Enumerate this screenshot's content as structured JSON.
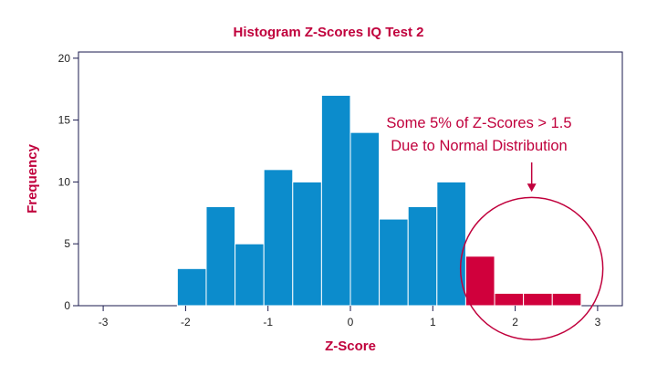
{
  "chart_data": {
    "type": "bar",
    "title": "Histogram Z-Scores IQ Test 2",
    "xlabel": "Z-Score",
    "ylabel": "Frequency",
    "xlim": [
      -3.3,
      3.3
    ],
    "ylim": [
      0,
      20.5
    ],
    "xticks": [
      -3,
      -2,
      -1,
      0,
      1,
      2,
      3
    ],
    "yticks": [
      0,
      5,
      10,
      15,
      20
    ],
    "bin_width": 0.35,
    "bins": [
      {
        "x0": -2.1,
        "x1": -1.75,
        "count": 3,
        "highlight": false
      },
      {
        "x0": -1.75,
        "x1": -1.4,
        "count": 8,
        "highlight": false
      },
      {
        "x0": -1.4,
        "x1": -1.05,
        "count": 5,
        "highlight": false
      },
      {
        "x0": -1.05,
        "x1": -0.7,
        "count": 11,
        "highlight": false
      },
      {
        "x0": -0.7,
        "x1": -0.35,
        "count": 10,
        "highlight": false
      },
      {
        "x0": -0.35,
        "x1": 0.0,
        "count": 17,
        "highlight": false
      },
      {
        "x0": 0.0,
        "x1": 0.35,
        "count": 14,
        "highlight": false
      },
      {
        "x0": 0.35,
        "x1": 0.7,
        "count": 7,
        "highlight": false
      },
      {
        "x0": 0.7,
        "x1": 1.05,
        "count": 8,
        "highlight": false
      },
      {
        "x0": 1.05,
        "x1": 1.4,
        "count": 10,
        "highlight": false
      },
      {
        "x0": 1.4,
        "x1": 1.75,
        "count": 4,
        "highlight": true
      },
      {
        "x0": 1.75,
        "x1": 2.1,
        "count": 1,
        "highlight": true
      },
      {
        "x0": 2.1,
        "x1": 2.45,
        "count": 1,
        "highlight": true
      },
      {
        "x0": 2.45,
        "x1": 2.8,
        "count": 1,
        "highlight": true
      }
    ],
    "annotation": {
      "lines": [
        "Some 5% of Z-Scores > 1.5",
        "Due to Normal Distribution"
      ],
      "arrow_target": {
        "x": 2.2,
        "y": 9.2
      },
      "circle_center": {
        "x": 2.2,
        "y": 3.0
      }
    },
    "colors": {
      "bar": "#0c8ccc",
      "highlight": "#d0003c",
      "accent": "#c0003c",
      "axis": "#1a1a4e"
    },
    "grid": false,
    "legend": "none"
  }
}
